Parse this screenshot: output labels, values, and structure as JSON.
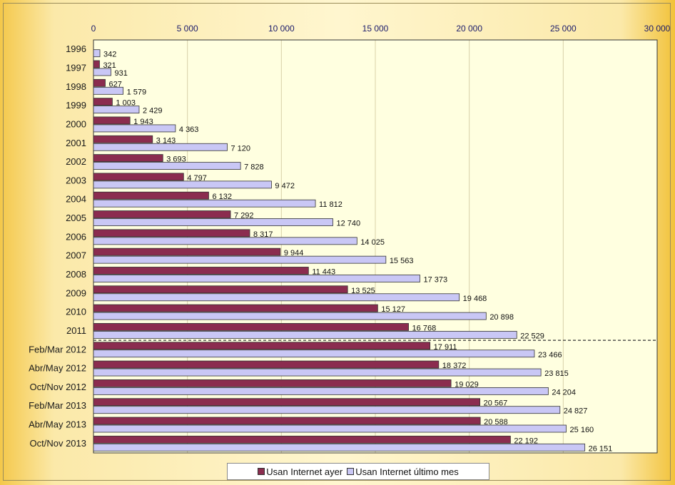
{
  "chart_data": {
    "type": "bar",
    "orientation": "horizontal",
    "categories": [
      "1996",
      "1997",
      "1998",
      "1999",
      "2000",
      "2001",
      "2002",
      "2003",
      "2004",
      "2005",
      "2006",
      "2007",
      "2008",
      "2009",
      "2010",
      "2011",
      "Feb/Mar 2012",
      "Abr/May 2012",
      "Oct/Nov 2012",
      "Feb/Mar 2013",
      "Abr/May 2013",
      "Oct/Nov 2013"
    ],
    "series": [
      {
        "name": "Usan Internet ayer",
        "color": "#8b2c4f",
        "values": [
          null,
          321,
          627,
          1003,
          1943,
          3143,
          3693,
          4797,
          6132,
          7292,
          8317,
          9944,
          11443,
          13525,
          15127,
          16768,
          17911,
          18372,
          19029,
          20567,
          20588,
          22192
        ],
        "labels": [
          "",
          "321",
          "627",
          "1 003",
          "1 943",
          "3 143",
          "3 693",
          "4 797",
          "6 132",
          "7 292",
          "8 317",
          "9 944",
          "11 443",
          "13 525",
          "15 127",
          "16 768",
          "17 911",
          "18 372",
          "19 029",
          "20 567",
          "20 588",
          "22 192"
        ]
      },
      {
        "name": "Usan Internet último mes",
        "color": "#c9c7f5",
        "values": [
          342,
          931,
          1579,
          2429,
          4363,
          7120,
          7828,
          9472,
          11812,
          12740,
          14025,
          15563,
          17373,
          19468,
          20898,
          22529,
          23466,
          23815,
          24204,
          24827,
          25160,
          26151
        ],
        "labels": [
          "342",
          "931",
          "1 579",
          "2 429",
          "4 363",
          "7 120",
          "7 828",
          "9 472",
          "11 812",
          "12 740",
          "14 025",
          "15 563",
          "17 373",
          "19 468",
          "20 898",
          "22 529",
          "23 466",
          "23 815",
          "24 204",
          "24 827",
          "25 160",
          "26 151"
        ]
      }
    ],
    "xlim": [
      0,
      30000
    ],
    "xticks": [
      0,
      5000,
      10000,
      15000,
      20000,
      25000,
      30000
    ],
    "xtick_labels": [
      "0",
      "5 000",
      "10 000",
      "15 000",
      "20 000",
      "25 000",
      "30 000"
    ],
    "x_axis_position": "top",
    "grid": true,
    "legend_position": "bottom",
    "plot_background": "#ffffe0",
    "separator_after_category": "2011"
  },
  "legend": {
    "items": [
      {
        "label": "Usan Internet ayer",
        "color": "#8b2c4f"
      },
      {
        "label": "Usan Internet último mes",
        "color": "#c9c7f5"
      }
    ]
  }
}
